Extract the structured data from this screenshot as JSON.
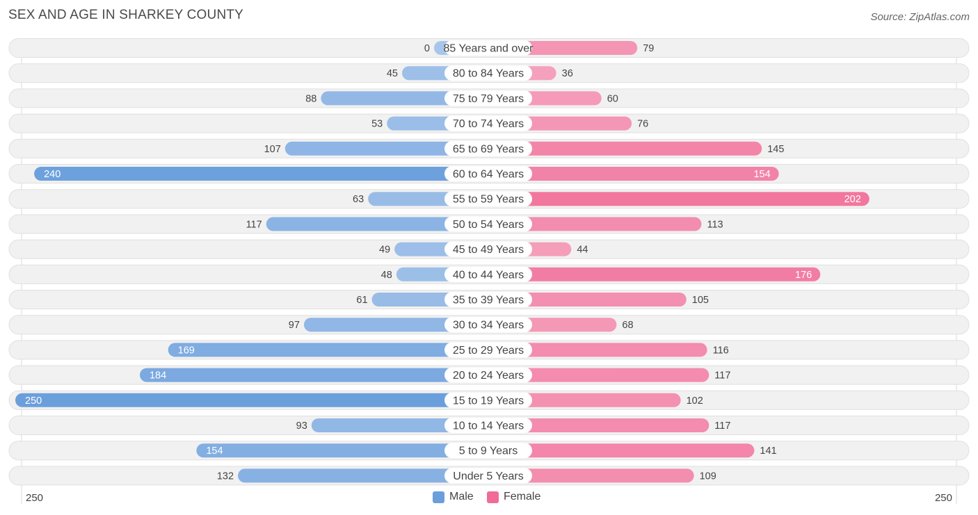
{
  "title": "SEX AND AGE IN SHARKEY COUNTY",
  "source": "Source: ZipAtlas.com",
  "colors": {
    "male_dark": "#6b9fdc",
    "male_light": "#a8c6eb",
    "female_dark": "#f06b97",
    "female_light": "#f6a9c2",
    "row_bg": "#f1f1f1",
    "row_border": "#e0e0e0"
  },
  "legend": {
    "male": "Male",
    "female": "Female"
  },
  "axis": {
    "left_label": "250",
    "right_label": "250"
  },
  "chart_data": {
    "type": "bar",
    "orientation": "horizontal-diverging",
    "title": "SEX AND AGE IN SHARKEY COUNTY",
    "xlim": [
      -250,
      250
    ],
    "categories": [
      "85 Years and over",
      "80 to 84 Years",
      "75 to 79 Years",
      "70 to 74 Years",
      "65 to 69 Years",
      "60 to 64 Years",
      "55 to 59 Years",
      "50 to 54 Years",
      "45 to 49 Years",
      "40 to 44 Years",
      "35 to 39 Years",
      "30 to 34 Years",
      "25 to 29 Years",
      "20 to 24 Years",
      "15 to 19 Years",
      "10 to 14 Years",
      "5 to 9 Years",
      "Under 5 Years"
    ],
    "series": [
      {
        "name": "Male",
        "values": [
          0,
          45,
          88,
          53,
          107,
          240,
          63,
          117,
          49,
          48,
          61,
          97,
          169,
          184,
          250,
          93,
          154,
          132
        ]
      },
      {
        "name": "Female",
        "values": [
          79,
          36,
          60,
          76,
          145,
          154,
          202,
          113,
          44,
          176,
          105,
          68,
          116,
          117,
          102,
          117,
          141,
          109
        ]
      }
    ],
    "legend_position": "bottom-center"
  }
}
